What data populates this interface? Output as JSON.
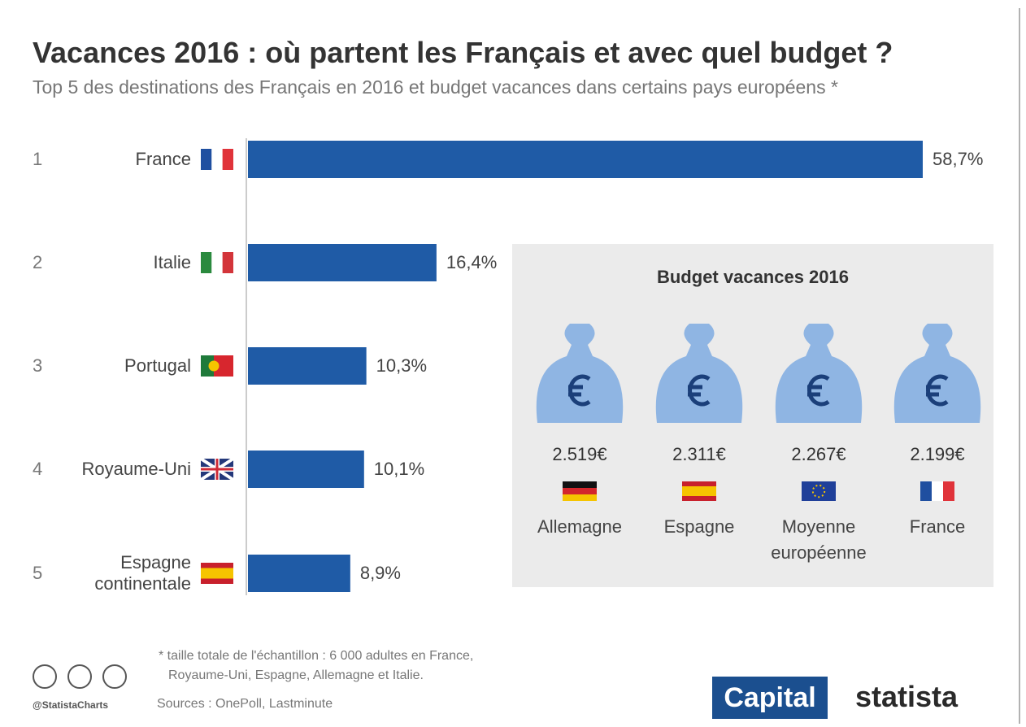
{
  "chart_data": {
    "type": "bar",
    "orientation": "horizontal",
    "title": "Vacances 2016 : où partent les Français et avec quel budget ?",
    "subtitle": "Top 5 des destinations des Français en 2016 et budget vacances dans certains pays européens *",
    "ranks": [
      "1",
      "2",
      "3",
      "4",
      "5"
    ],
    "categories": [
      "France",
      "Italie",
      "Portugal",
      "Royaume-Uni",
      "Espagne continentale"
    ],
    "values": [
      58.7,
      16.4,
      10.3,
      10.1,
      8.9
    ],
    "value_labels": [
      "58,7%",
      "16,4%",
      "10,3%",
      "10,1%",
      "8,9%"
    ],
    "color": "#1f5ba6",
    "inset": {
      "title": "Budget vacances 2016",
      "amounts": [
        "2.519€",
        "2.311€",
        "2.267€",
        "2.199€"
      ],
      "countries": [
        "Allemagne",
        "Espagne",
        "Moyenne européenne",
        "France"
      ]
    },
    "footnote": [
      "* taille totale de l'échantillon : 6 000 adultes en France,",
      "Royaume-Uni, Espagne, Allemagne et Italie."
    ],
    "sources": "Sources : OnePoll, Lastminute",
    "credit": "@StatistaCharts",
    "logos": [
      "Capital",
      "statista"
    ]
  }
}
